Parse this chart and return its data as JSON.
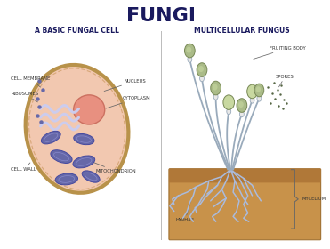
{
  "title": "FUNGI",
  "subtitle_left": "A BASIC FUNGAL CELL",
  "subtitle_right": "MULTICELLULAR FUNGUS",
  "title_fontsize": 16,
  "subtitle_fontsize": 5.5,
  "label_fontsize": 3.8,
  "bg_color": "#ffffff",
  "cell_wall_color": "#b8924a",
  "cell_inner_color": "#f2c8b0",
  "nucleus_color": "#e89080",
  "nucleus_edge": "#cc7060",
  "mito_fill": "#6668a8",
  "mito_edge": "#4448a0",
  "er_color": "#ccccee",
  "soil_color": "#c8924a",
  "soil_top_color": "#b07838",
  "stem_color": "#99aabb",
  "fruit_fill": "#aabb88",
  "fruit_edge": "#778855",
  "fruit_tip_fill": "#c8d8a0",
  "mycelium_line": "#aabbdd",
  "spore_color": "#556644",
  "divider_color": "#bbbbbb",
  "label_color": "#333333",
  "arrow_color": "#666666",
  "title_color": "#1a1a5e",
  "subtitle_color": "#1a1a5e"
}
